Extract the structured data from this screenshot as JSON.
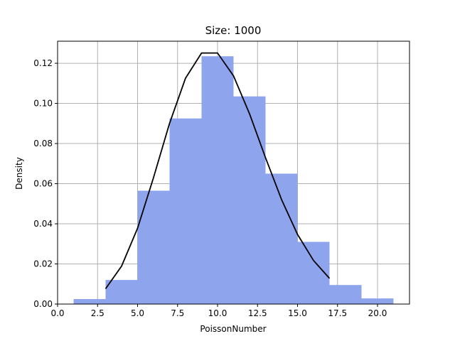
{
  "chart_data": {
    "type": "bar",
    "title": "Size: 1000",
    "xlabel": "PoissonNumber",
    "ylabel": "Density",
    "xlim": [
      0,
      22
    ],
    "ylim": [
      0,
      0.131
    ],
    "grid": true,
    "x_ticks": [
      0.0,
      2.5,
      5.0,
      7.5,
      10.0,
      12.5,
      15.0,
      17.5,
      20.0
    ],
    "x_tick_labels": [
      "0.0",
      "2.5",
      "5.0",
      "7.5",
      "10.0",
      "12.5",
      "15.0",
      "17.5",
      "20.0"
    ],
    "y_ticks": [
      0.0,
      0.02,
      0.04,
      0.06,
      0.08,
      0.1,
      0.12
    ],
    "y_tick_labels": [
      "0.00",
      "0.02",
      "0.04",
      "0.06",
      "0.08",
      "0.10",
      "0.12"
    ],
    "histogram": {
      "color": "#8ea5ee",
      "bins": [
        {
          "x0": 1,
          "x1": 3,
          "density": 0.0025
        },
        {
          "x0": 3,
          "x1": 5,
          "density": 0.012
        },
        {
          "x0": 5,
          "x1": 7,
          "density": 0.0565
        },
        {
          "x0": 7,
          "x1": 9,
          "density": 0.0925
        },
        {
          "x0": 9,
          "x1": 11,
          "density": 0.1235
        },
        {
          "x0": 11,
          "x1": 13,
          "density": 0.1035
        },
        {
          "x0": 13,
          "x1": 15,
          "density": 0.065
        },
        {
          "x0": 15,
          "x1": 17,
          "density": 0.031
        },
        {
          "x0": 17,
          "x1": 19,
          "density": 0.0095
        },
        {
          "x0": 19,
          "x1": 21,
          "density": 0.0028
        }
      ]
    },
    "curve": {
      "color": "#000000",
      "x": [
        3,
        4,
        5,
        6,
        7,
        8,
        9,
        10,
        11,
        12,
        13,
        14,
        15,
        16,
        17
      ],
      "y": [
        0.0076,
        0.0189,
        0.0378,
        0.0631,
        0.0901,
        0.1126,
        0.1251,
        0.1251,
        0.1137,
        0.0948,
        0.0729,
        0.0521,
        0.0347,
        0.0217,
        0.0128
      ]
    }
  }
}
